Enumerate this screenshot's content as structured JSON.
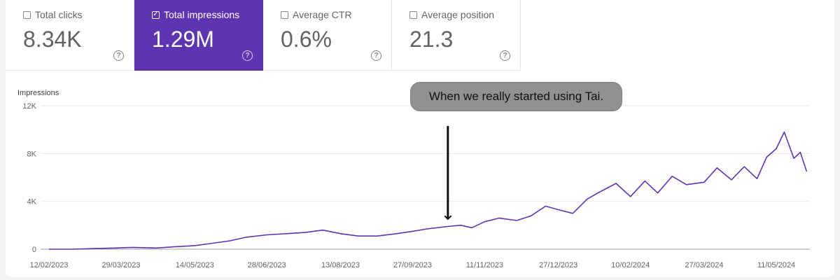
{
  "metrics": [
    {
      "label": "Total clicks",
      "value": "8.34K",
      "checked": false
    },
    {
      "label": "Total impressions",
      "value": "1.29M",
      "checked": true
    },
    {
      "label": "Average CTR",
      "value": "0.6%",
      "checked": false
    },
    {
      "label": "Average position",
      "value": "21.3",
      "checked": false
    }
  ],
  "icons": {
    "checked": "✓",
    "help": "?"
  },
  "colors": {
    "accent": "#5e35b1",
    "line": "#5e35b1",
    "grid": "#e8eaed"
  },
  "annotation": {
    "text": "When we really started using Tai.",
    "x": "2023-10-19"
  },
  "chart_data": {
    "type": "line",
    "title": "",
    "xlabel": "",
    "ylabel": "Impressions",
    "ylim": [
      0,
      12000
    ],
    "xlim": [
      "2023-02-12",
      "2024-06-01"
    ],
    "y_ticks": [
      0,
      4000,
      8000,
      12000
    ],
    "y_tick_labels": [
      "0",
      "4K",
      "8K",
      "12K"
    ],
    "x_ticks": [
      "2023-02-12",
      "2023-03-29",
      "2023-05-14",
      "2023-06-28",
      "2023-08-13",
      "2023-09-27",
      "2023-11-11",
      "2023-12-27",
      "2024-02-10",
      "2024-03-27",
      "2024-05-11"
    ],
    "x_tick_labels": [
      "12/02/2023",
      "29/03/2023",
      "14/05/2023",
      "28/06/2023",
      "13/08/2023",
      "27/09/2023",
      "11/11/2023",
      "27/12/2023",
      "10/02/2024",
      "27/03/2024",
      "11/05/2024"
    ],
    "grid": true,
    "series": [
      {
        "x": [
          "2023-02-12",
          "2023-02-26",
          "2023-03-12",
          "2023-03-26",
          "2023-04-05",
          "2023-04-20",
          "2023-05-01",
          "2023-05-14",
          "2023-05-25",
          "2023-06-05",
          "2023-06-15",
          "2023-06-28",
          "2023-07-10",
          "2023-07-22",
          "2023-08-02",
          "2023-08-13",
          "2023-08-24",
          "2023-09-05",
          "2023-09-17",
          "2023-09-27",
          "2023-10-06",
          "2023-10-19",
          "2023-10-27",
          "2023-11-03",
          "2023-11-11",
          "2023-11-20",
          "2023-12-01",
          "2023-12-10",
          "2023-12-19",
          "2023-12-27",
          "2024-01-05",
          "2024-01-14",
          "2024-01-22",
          "2024-02-01",
          "2024-02-10",
          "2024-02-19",
          "2024-02-27",
          "2024-03-07",
          "2024-03-16",
          "2024-03-27",
          "2024-04-04",
          "2024-04-13",
          "2024-04-21",
          "2024-04-29",
          "2024-05-05",
          "2024-05-11",
          "2024-05-16",
          "2024-05-22",
          "2024-05-26",
          "2024-05-30"
        ],
        "values": [
          0,
          0,
          50,
          100,
          150,
          100,
          200,
          300,
          500,
          700,
          1000,
          1200,
          1300,
          1400,
          1600,
          1300,
          1100,
          1100,
          1300,
          1500,
          1700,
          1900,
          2000,
          1800,
          2300,
          2600,
          2400,
          2800,
          3600,
          3300,
          3000,
          4200,
          4800,
          5500,
          4400,
          5700,
          4700,
          6100,
          5400,
          5600,
          6800,
          5800,
          6900,
          5900,
          7700,
          8400,
          9800,
          7600,
          8100,
          6500
        ]
      }
    ]
  }
}
